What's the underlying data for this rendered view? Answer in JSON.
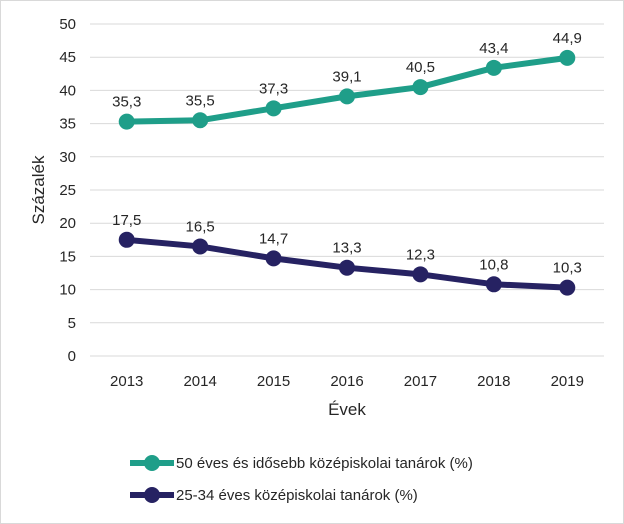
{
  "chart_data": {
    "type": "line",
    "categories": [
      "2013",
      "2014",
      "2015",
      "2016",
      "2017",
      "2018",
      "2019"
    ],
    "series": [
      {
        "name": "50 éves és idősebb középiskolai tanárok (%)",
        "color": "#1f9e89",
        "values": [
          35.3,
          35.5,
          37.3,
          39.1,
          40.5,
          43.4,
          44.9
        ],
        "labels": [
          "35,3",
          "35,5",
          "37,3",
          "39,1",
          "40,5",
          "43,4",
          "44,9"
        ]
      },
      {
        "name": "25-34 éves középiskolai tanárok (%)",
        "color": "#262262",
        "values": [
          17.5,
          16.5,
          14.7,
          13.3,
          12.3,
          10.8,
          10.3
        ],
        "labels": [
          "17,5",
          "16,5",
          "14,7",
          "13,3",
          "12,3",
          "10,8",
          "10,3"
        ]
      }
    ],
    "xlabel": "Évek",
    "ylabel": "Százalék",
    "ylim": [
      0,
      50
    ],
    "yticks": [
      "0",
      "5",
      "10",
      "15",
      "20",
      "25",
      "30",
      "35",
      "40",
      "45",
      "50"
    ],
    "grid": true,
    "legend": "bottom"
  }
}
